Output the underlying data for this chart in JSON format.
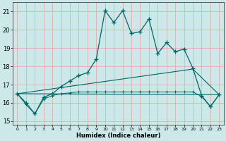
{
  "xlabel": "Humidex (Indice chaleur)",
  "bg_color": "#cce8e8",
  "grid_color": "#e8a0a0",
  "line_color": "#006666",
  "xlim": [
    -0.5,
    23.5
  ],
  "ylim": [
    14.8,
    21.5
  ],
  "xticks": [
    0,
    1,
    2,
    3,
    4,
    5,
    6,
    7,
    8,
    9,
    10,
    11,
    12,
    13,
    14,
    15,
    16,
    17,
    18,
    19,
    20,
    21,
    22,
    23
  ],
  "yticks": [
    15,
    16,
    17,
    18,
    19,
    20,
    21
  ],
  "line1_x": [
    0,
    1,
    2,
    3,
    4,
    5,
    6,
    7,
    8,
    9,
    10,
    11,
    12,
    13,
    14,
    15,
    16,
    17,
    18,
    19,
    20,
    21,
    22,
    23
  ],
  "line1_y": [
    16.5,
    16.0,
    15.4,
    16.3,
    16.5,
    16.9,
    17.2,
    17.5,
    17.65,
    18.4,
    21.05,
    20.4,
    21.05,
    19.8,
    19.9,
    20.6,
    18.7,
    19.3,
    18.8,
    18.95,
    17.9,
    16.4,
    15.8,
    16.45
  ],
  "line2_x": [
    0,
    1,
    2,
    3,
    4,
    5,
    6,
    7,
    8,
    9,
    10,
    11,
    12,
    13,
    14,
    15,
    16,
    17,
    18,
    19,
    20,
    21,
    22,
    23
  ],
  "line2_y": [
    16.5,
    15.9,
    15.4,
    16.2,
    16.4,
    16.5,
    16.55,
    16.6,
    16.6,
    16.6,
    16.6,
    16.6,
    16.6,
    16.6,
    16.6,
    16.6,
    16.6,
    16.6,
    16.6,
    16.6,
    16.6,
    16.35,
    15.8,
    16.45
  ],
  "line3_x": [
    0,
    23
  ],
  "line3_y": [
    16.5,
    16.45
  ],
  "line4_x": [
    0,
    20,
    23
  ],
  "line4_y": [
    16.5,
    17.85,
    16.45
  ]
}
